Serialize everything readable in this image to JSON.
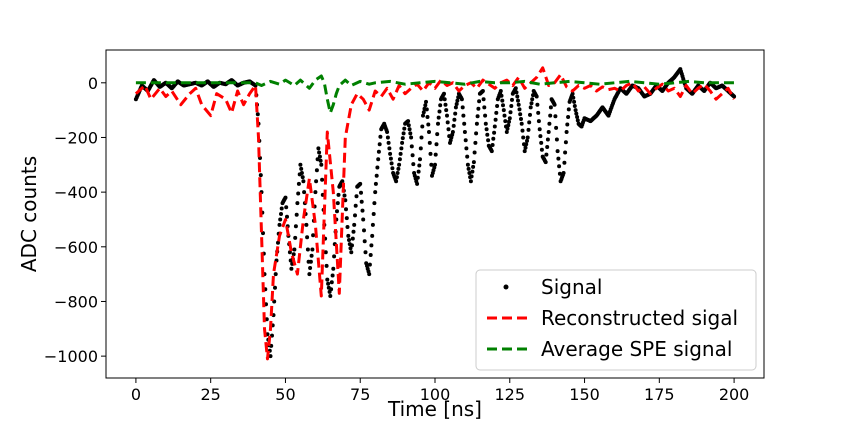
{
  "chart_data": {
    "type": "line",
    "xlabel": "Time [ns]",
    "ylabel": "ADC counts",
    "xlim": [
      -10,
      210
    ],
    "ylim": [
      -1080,
      120
    ],
    "xticks": [
      0,
      25,
      50,
      75,
      100,
      125,
      150,
      175,
      200
    ],
    "yticks": [
      0,
      -200,
      -400,
      -600,
      -800,
      -1000
    ],
    "xtick_labels": [
      "0",
      "25",
      "50",
      "75",
      "100",
      "125",
      "150",
      "175",
      "200"
    ],
    "ytick_labels": [
      "0",
      "−200",
      "−400",
      "−600",
      "−800",
      "−1000"
    ],
    "grid": false,
    "legend_position": "lower-right",
    "series": [
      {
        "name": "Signal",
        "style": "dots",
        "color": "#000000",
        "x": [
          0,
          2,
          4,
          6,
          8,
          10,
          12,
          14,
          16,
          18,
          20,
          22,
          24,
          26,
          28,
          30,
          32,
          34,
          36,
          38,
          40,
          41,
          42,
          43,
          44,
          45,
          46,
          47,
          48,
          49,
          50,
          51,
          52,
          53,
          54,
          55,
          56,
          57,
          58,
          59,
          60,
          61,
          62,
          63,
          64,
          65,
          66,
          67,
          68,
          69,
          70,
          71,
          72,
          73,
          74,
          75,
          76,
          77,
          78,
          79,
          80,
          81,
          82,
          83,
          84,
          85,
          86,
          87,
          88,
          89,
          90,
          91,
          92,
          93,
          94,
          95,
          96,
          97,
          98,
          99,
          100,
          101,
          102,
          103,
          104,
          105,
          106,
          107,
          108,
          109,
          110,
          111,
          112,
          113,
          114,
          115,
          116,
          117,
          118,
          119,
          120,
          121,
          122,
          123,
          124,
          125,
          126,
          127,
          128,
          129,
          130,
          131,
          132,
          133,
          134,
          135,
          136,
          137,
          138,
          139,
          140,
          141,
          142,
          143,
          144,
          145,
          146,
          147,
          148,
          149,
          150,
          152,
          154,
          156,
          158,
          160,
          162,
          164,
          166,
          168,
          170,
          172,
          174,
          176,
          178,
          180,
          182,
          184,
          186,
          188,
          190,
          192,
          194,
          196,
          198,
          200
        ],
        "y": [
          -60,
          -10,
          -30,
          10,
          -15,
          0,
          -20,
          5,
          -10,
          -5,
          0,
          -10,
          5,
          -15,
          0,
          -5,
          10,
          -10,
          0,
          5,
          -10,
          -150,
          -400,
          -700,
          -920,
          -1000,
          -850,
          -650,
          -520,
          -440,
          -420,
          -560,
          -680,
          -610,
          -440,
          -300,
          -360,
          -520,
          -700,
          -610,
          -400,
          -240,
          -300,
          -520,
          -720,
          -780,
          -680,
          -500,
          -380,
          -360,
          -430,
          -560,
          -620,
          -520,
          -380,
          -370,
          -500,
          -660,
          -700,
          -560,
          -400,
          -280,
          -170,
          -150,
          -180,
          -260,
          -330,
          -360,
          -300,
          -220,
          -150,
          -140,
          -200,
          -330,
          -370,
          -280,
          -120,
          -70,
          -180,
          -340,
          -300,
          -150,
          -60,
          -40,
          -120,
          -220,
          -180,
          -90,
          -40,
          -60,
          -180,
          -300,
          -360,
          -290,
          -150,
          -40,
          -30,
          -150,
          -230,
          -250,
          -160,
          -60,
          -30,
          -100,
          -180,
          -130,
          -40,
          -20,
          -80,
          -150,
          -250,
          -200,
          -90,
          -30,
          -50,
          -170,
          -270,
          -290,
          -180,
          -60,
          -80,
          -250,
          -360,
          -330,
          -180,
          -70,
          -40,
          -100,
          -150,
          -160,
          -130,
          -140,
          -120,
          -90,
          -120,
          -60,
          -20,
          -40,
          -10,
          -20,
          -50,
          -40,
          -10,
          -30,
          0,
          20,
          50,
          -20,
          -40,
          -10,
          -30,
          0,
          -20,
          -10,
          -30,
          -50
        ]
      },
      {
        "name": "Reconstructed sigal",
        "style": "dashed",
        "color": "#ff0000",
        "x": [
          0,
          3,
          5,
          8,
          10,
          12,
          15,
          18,
          20,
          22,
          25,
          27,
          30,
          32,
          34,
          36,
          38,
          40,
          41,
          42,
          43,
          44,
          45,
          46,
          48,
          50,
          52,
          54,
          56,
          58,
          60,
          62,
          64,
          66,
          68,
          70,
          72,
          74,
          76,
          78,
          80,
          82,
          84,
          86,
          88,
          90,
          92,
          94,
          96,
          98,
          100,
          102,
          104,
          106,
          108,
          110,
          112,
          114,
          116,
          118,
          120,
          122,
          124,
          126,
          128,
          130,
          132,
          134,
          136,
          138,
          140,
          142,
          144,
          146,
          148,
          150,
          152,
          154,
          156,
          158,
          160,
          162,
          164,
          166,
          168,
          170,
          172,
          174,
          176,
          178,
          180,
          182,
          184,
          186,
          188,
          190,
          192,
          194,
          196,
          198,
          200
        ],
        "y": [
          -40,
          -10,
          -60,
          -20,
          -50,
          -30,
          -80,
          -40,
          -20,
          -80,
          -120,
          -40,
          -60,
          -110,
          -30,
          -80,
          -40,
          -10,
          -200,
          -550,
          -900,
          -1010,
          -900,
          -700,
          -560,
          -500,
          -620,
          -700,
          -500,
          -350,
          -520,
          -780,
          -180,
          -400,
          -770,
          -200,
          -80,
          -40,
          -60,
          -100,
          -30,
          -50,
          -20,
          -60,
          -10,
          -40,
          -20,
          -5,
          -30,
          0,
          -20,
          10,
          -10,
          0,
          -30,
          -10,
          0,
          -20,
          10,
          -5,
          -20,
          0,
          10,
          -10,
          20,
          -20,
          0,
          20,
          55,
          -10,
          0,
          30,
          -15,
          -30,
          -10,
          -20,
          -10,
          -30,
          -15,
          -25,
          -20,
          -30,
          -10,
          0,
          -30,
          -15,
          -40,
          -20,
          -5,
          -30,
          -20,
          -50,
          -10,
          -40,
          -20,
          -5,
          -30,
          -60,
          -40,
          -20,
          -60
        ]
      },
      {
        "name": "Average SPE signal",
        "style": "dashed",
        "color": "#008000",
        "x": [
          0,
          5,
          10,
          15,
          20,
          25,
          30,
          35,
          40,
          42,
          45,
          48,
          50,
          53,
          55,
          58,
          60,
          62,
          63,
          64,
          65,
          66,
          67,
          68,
          70,
          72,
          75,
          78,
          80,
          85,
          90,
          95,
          100,
          105,
          110,
          115,
          120,
          125,
          130,
          135,
          140,
          145,
          150,
          155,
          160,
          165,
          170,
          175,
          180,
          185,
          190,
          195,
          200
        ],
        "y": [
          0,
          0,
          0,
          0,
          0,
          0,
          0,
          0,
          0,
          -10,
          5,
          -5,
          10,
          -10,
          10,
          -20,
          10,
          25,
          0,
          -60,
          -110,
          -80,
          -40,
          -10,
          10,
          -10,
          5,
          -5,
          0,
          5,
          -5,
          0,
          5,
          0,
          -5,
          5,
          0,
          0,
          5,
          -5,
          0,
          5,
          0,
          -5,
          0,
          5,
          0,
          -5,
          0,
          5,
          0,
          0,
          0
        ]
      }
    ]
  }
}
